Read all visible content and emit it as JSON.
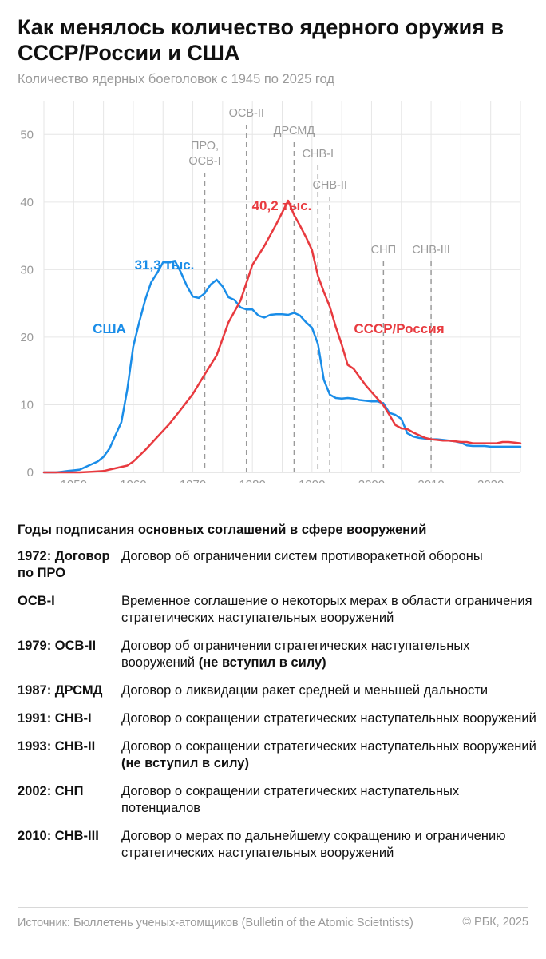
{
  "header": {
    "title": "Как менялось количество ядерного оружия в СССР/России и США",
    "subtitle": "Количество ядерных боеголовок с 1945 по 2025 год"
  },
  "colors": {
    "usa": "#1a8de8",
    "ussr": "#e83a3f",
    "treaty_line": "#9a9a9a",
    "grid": "#e6e6e6"
  },
  "chart_data": {
    "type": "line",
    "title": "",
    "xlabel": "",
    "ylabel": "",
    "xlim": [
      1945,
      2025
    ],
    "ylim": [
      0,
      55
    ],
    "y_unit": "тыс. боеголовок",
    "xticks": [
      1950,
      1960,
      1970,
      1980,
      1990,
      2000,
      2010,
      2020
    ],
    "yticks": [
      0,
      10,
      20,
      30,
      40,
      50
    ],
    "grid": true,
    "series": [
      {
        "name": "США",
        "color": "#1a8de8",
        "peak_label": "31,3 тыс.",
        "points": [
          [
            1945,
            0.0
          ],
          [
            1946,
            0.0
          ],
          [
            1947,
            0.0
          ],
          [
            1948,
            0.1
          ],
          [
            1949,
            0.2
          ],
          [
            1950,
            0.3
          ],
          [
            1951,
            0.4
          ],
          [
            1952,
            0.8
          ],
          [
            1953,
            1.2
          ],
          [
            1954,
            1.6
          ],
          [
            1955,
            2.3
          ],
          [
            1956,
            3.5
          ],
          [
            1957,
            5.5
          ],
          [
            1958,
            7.4
          ],
          [
            1959,
            12.3
          ],
          [
            1960,
            18.6
          ],
          [
            1961,
            22.2
          ],
          [
            1962,
            25.5
          ],
          [
            1963,
            28.1
          ],
          [
            1964,
            29.5
          ],
          [
            1965,
            31.1
          ],
          [
            1966,
            31.1
          ],
          [
            1967,
            31.3
          ],
          [
            1968,
            29.6
          ],
          [
            1969,
            27.6
          ],
          [
            1970,
            26.0
          ],
          [
            1971,
            25.8
          ],
          [
            1972,
            26.5
          ],
          [
            1973,
            27.8
          ],
          [
            1974,
            28.5
          ],
          [
            1975,
            27.5
          ],
          [
            1976,
            25.9
          ],
          [
            1977,
            25.5
          ],
          [
            1978,
            24.4
          ],
          [
            1979,
            24.1
          ],
          [
            1980,
            24.1
          ],
          [
            1981,
            23.2
          ],
          [
            1982,
            22.9
          ],
          [
            1983,
            23.3
          ],
          [
            1984,
            23.4
          ],
          [
            1985,
            23.4
          ],
          [
            1986,
            23.3
          ],
          [
            1987,
            23.6
          ],
          [
            1988,
            23.2
          ],
          [
            1989,
            22.2
          ],
          [
            1990,
            21.4
          ],
          [
            1991,
            19.0
          ],
          [
            1992,
            13.7
          ],
          [
            1993,
            11.5
          ],
          [
            1994,
            11.0
          ],
          [
            1995,
            10.9
          ],
          [
            1996,
            11.0
          ],
          [
            1997,
            10.9
          ],
          [
            1998,
            10.7
          ],
          [
            1999,
            10.6
          ],
          [
            2000,
            10.5
          ],
          [
            2001,
            10.5
          ],
          [
            2002,
            10.2
          ],
          [
            2003,
            8.8
          ],
          [
            2004,
            8.5
          ],
          [
            2005,
            7.9
          ],
          [
            2006,
            5.8
          ],
          [
            2007,
            5.3
          ],
          [
            2008,
            5.1
          ],
          [
            2009,
            5.0
          ],
          [
            2010,
            4.9
          ],
          [
            2011,
            4.9
          ],
          [
            2012,
            4.8
          ],
          [
            2013,
            4.7
          ],
          [
            2014,
            4.6
          ],
          [
            2015,
            4.4
          ],
          [
            2016,
            4.0
          ],
          [
            2017,
            3.9
          ],
          [
            2018,
            3.9
          ],
          [
            2019,
            3.9
          ],
          [
            2020,
            3.8
          ],
          [
            2021,
            3.8
          ],
          [
            2022,
            3.8
          ],
          [
            2023,
            3.8
          ],
          [
            2024,
            3.8
          ],
          [
            2025,
            3.8
          ]
        ]
      },
      {
        "name": "СССР/Россия",
        "color": "#e83a3f",
        "peak_label": "40,2 тыс.",
        "points": [
          [
            1945,
            0.0
          ],
          [
            1949,
            0.0
          ],
          [
            1951,
            0.0
          ],
          [
            1953,
            0.1
          ],
          [
            1955,
            0.2
          ],
          [
            1957,
            0.6
          ],
          [
            1959,
            1.0
          ],
          [
            1960,
            1.6
          ],
          [
            1962,
            3.3
          ],
          [
            1964,
            5.2
          ],
          [
            1966,
            7.1
          ],
          [
            1968,
            9.3
          ],
          [
            1970,
            11.6
          ],
          [
            1972,
            14.5
          ],
          [
            1974,
            17.3
          ],
          [
            1976,
            22.2
          ],
          [
            1978,
            25.4
          ],
          [
            1980,
            30.7
          ],
          [
            1982,
            33.5
          ],
          [
            1984,
            36.7
          ],
          [
            1986,
            40.2
          ],
          [
            1987,
            38.1
          ],
          [
            1988,
            36.5
          ],
          [
            1989,
            34.8
          ],
          [
            1990,
            32.9
          ],
          [
            1991,
            29.1
          ],
          [
            1992,
            26.7
          ],
          [
            1993,
            24.5
          ],
          [
            1994,
            21.5
          ],
          [
            1995,
            18.9
          ],
          [
            1996,
            15.9
          ],
          [
            1997,
            15.3
          ],
          [
            1998,
            14.1
          ],
          [
            1999,
            12.9
          ],
          [
            2000,
            11.9
          ],
          [
            2001,
            10.9
          ],
          [
            2002,
            9.9
          ],
          [
            2003,
            8.5
          ],
          [
            2004,
            7.0
          ],
          [
            2005,
            6.5
          ],
          [
            2006,
            6.4
          ],
          [
            2007,
            5.9
          ],
          [
            2008,
            5.5
          ],
          [
            2009,
            5.1
          ],
          [
            2010,
            4.9
          ],
          [
            2011,
            4.8
          ],
          [
            2012,
            4.7
          ],
          [
            2013,
            4.7
          ],
          [
            2014,
            4.6
          ],
          [
            2015,
            4.5
          ],
          [
            2016,
            4.5
          ],
          [
            2017,
            4.3
          ],
          [
            2018,
            4.3
          ],
          [
            2019,
            4.3
          ],
          [
            2020,
            4.3
          ],
          [
            2021,
            4.3
          ],
          [
            2022,
            4.5
          ],
          [
            2023,
            4.5
          ],
          [
            2024,
            4.4
          ],
          [
            2025,
            4.3
          ]
        ]
      }
    ],
    "treaty_markers": [
      {
        "year": 1972,
        "label": "ПРО, ОСВ-I",
        "lines": [
          "ПРО,",
          "ОСВ-I"
        ]
      },
      {
        "year": 1979,
        "label": "ОСВ-II",
        "lines": [
          "ОСВ-II"
        ]
      },
      {
        "year": 1987,
        "label": "ДРСМД",
        "lines": [
          "ДРСМД"
        ]
      },
      {
        "year": 1991,
        "label": "СНВ-I",
        "lines": [
          "СНВ-I"
        ]
      },
      {
        "year": 1993,
        "label": "СНВ-II",
        "lines": [
          "СНВ-II"
        ]
      },
      {
        "year": 2002,
        "label": "СНП",
        "lines": [
          "СНП"
        ]
      },
      {
        "year": 2010,
        "label": "СНВ-III",
        "lines": [
          "СНВ-III"
        ]
      }
    ]
  },
  "treaties": {
    "heading": "Годы подписания основных соглашений в сфере вооружений",
    "items": [
      {
        "name": "1972: Договор по ПРО",
        "desc": "Договор об ограничении систем противоракетной обороны",
        "note": ""
      },
      {
        "name": "ОСВ-I",
        "desc": "Временное соглашение о некоторых мерах в области ограничения стратегических наступательных вооружений",
        "note": ""
      },
      {
        "name": "1979: ОСВ-II",
        "desc": "Договор об ограничении стратегических наступательных вооружений",
        "note": "(не вступил в силу)"
      },
      {
        "name": "1987: ДРСМД",
        "desc": "Договор о ликвидации ракет средней и меньшей дальности",
        "note": ""
      },
      {
        "name": "1991: СНВ-I",
        "desc": "Договор о сокращении стратегических наступательных вооружений",
        "note": ""
      },
      {
        "name": "1993: СНВ-II",
        "desc": "Договор о сокращении стратегических наступательных вооружений",
        "note": "(не вступил в силу)"
      },
      {
        "name": "2002: СНП",
        "desc": "Договор о сокращении стратегических наступательных потенциалов",
        "note": ""
      },
      {
        "name": "2010: СНВ-III",
        "desc": "Договор о мерах по дальнейшему сокращению и ограничению стратегических наступательных вооружений",
        "note": ""
      }
    ]
  },
  "footer": {
    "source": "Источник: Бюллетень ученых-атомщиков (Bulletin of the Atomic Scietntists)",
    "copyright": "© РБК, 2025"
  }
}
